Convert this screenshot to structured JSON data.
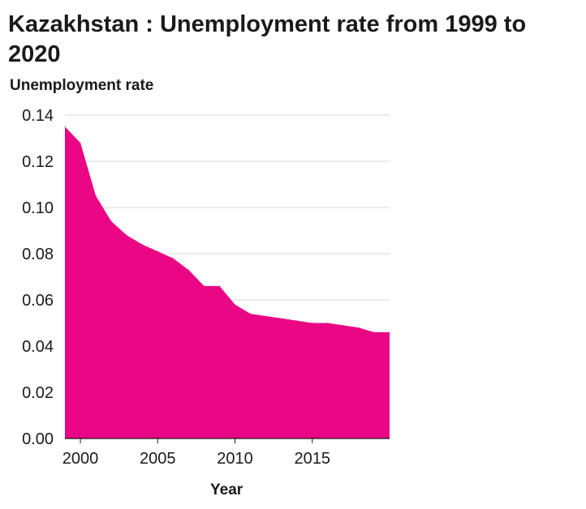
{
  "chart_data": {
    "type": "area",
    "title": "Kazakhstan : Unemployment rate from 1999 to 2020",
    "xlabel": "Year",
    "ylabel": "Unemployment rate",
    "x": [
      1999,
      2000,
      2001,
      2002,
      2003,
      2004,
      2005,
      2006,
      2007,
      2008,
      2009,
      2010,
      2011,
      2012,
      2013,
      2014,
      2015,
      2016,
      2017,
      2018,
      2019,
      2020
    ],
    "values": [
      0.135,
      0.128,
      0.105,
      0.094,
      0.088,
      0.084,
      0.081,
      0.078,
      0.073,
      0.066,
      0.066,
      0.058,
      0.054,
      0.053,
      0.052,
      0.051,
      0.05,
      0.05,
      0.049,
      0.048,
      0.046,
      0.046
    ],
    "xlim": [
      1999,
      2020
    ],
    "ylim": [
      0,
      0.14
    ],
    "xticks": [
      2000,
      2005,
      2010,
      2015
    ],
    "yticks": [
      "0.00",
      "0.02",
      "0.04",
      "0.06",
      "0.08",
      "0.10",
      "0.12",
      "0.14"
    ],
    "grid": "horizontal",
    "color": "#ea0585"
  }
}
